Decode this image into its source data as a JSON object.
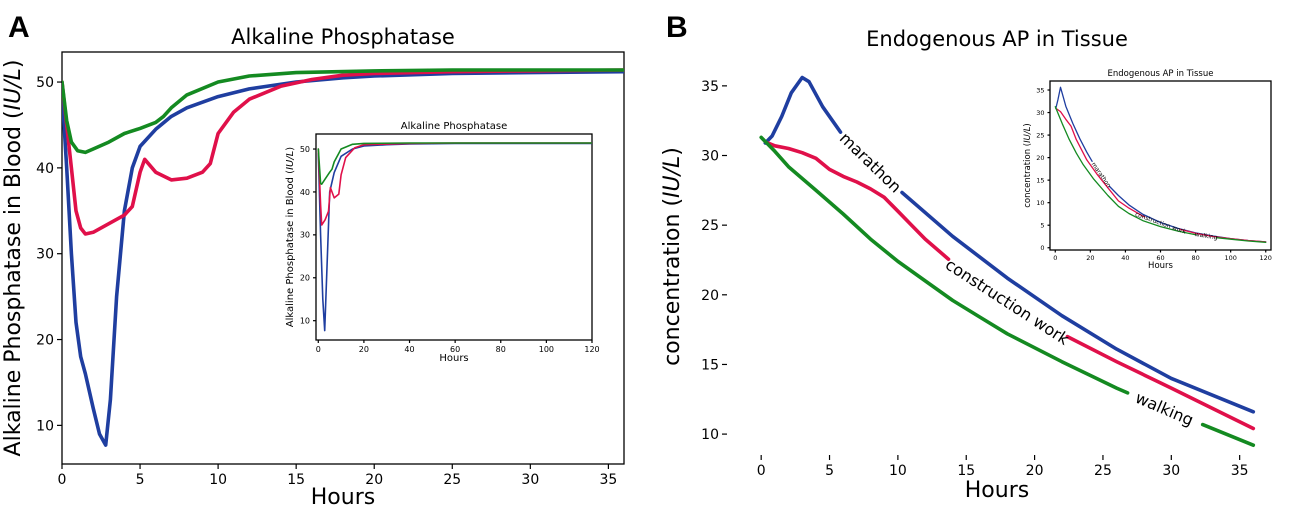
{
  "chart_data": [
    {
      "panel": "A",
      "type": "line",
      "title": "Alkaline Phosphatase",
      "xlabel": "Hours",
      "ylabel_prefix": "Alkaline Phosphatase in Blood (",
      "ylabel_unit": "IU/L",
      "ylabel_suffix": ")",
      "xlim": [
        0,
        36
      ],
      "ylim": [
        5.5,
        53.5
      ],
      "xticks": [
        0,
        5,
        10,
        15,
        20,
        25,
        30,
        35
      ],
      "yticks": [
        10,
        20,
        30,
        40,
        50
      ],
      "series": [
        {
          "color": "#1f3ea0",
          "x": [
            0,
            0.3,
            0.6,
            0.9,
            1.2,
            1.5,
            2,
            2.4,
            2.8,
            3.1,
            3.5,
            4,
            4.5,
            5,
            6,
            7,
            8,
            10,
            12,
            15,
            18,
            20,
            25,
            30,
            36
          ],
          "y": [
            49,
            40,
            30,
            22,
            18,
            16,
            12,
            9,
            7.7,
            13,
            25,
            35,
            40,
            42.5,
            44.5,
            46,
            47,
            48.3,
            49.2,
            50,
            50.5,
            50.7,
            51,
            51.1,
            51.2
          ]
        },
        {
          "color": "#e0104a",
          "x": [
            0,
            0.3,
            0.6,
            0.9,
            1.2,
            1.5,
            2,
            3,
            4,
            4.5,
            5,
            5.3,
            6,
            7,
            8,
            9,
            9.5,
            10,
            11,
            12,
            14,
            16,
            18,
            20,
            25,
            30,
            36
          ],
          "y": [
            50,
            45,
            40,
            35,
            33,
            32.3,
            32.5,
            33.5,
            34.5,
            35.5,
            39.5,
            41,
            39.5,
            38.6,
            38.8,
            39.5,
            40.5,
            44,
            46.5,
            48,
            49.5,
            50.3,
            50.8,
            51,
            51.2,
            51.3,
            51.4
          ]
        },
        {
          "color": "#148a21",
          "x": [
            0,
            0.3,
            0.6,
            1,
            1.5,
            2,
            3,
            4,
            5,
            6,
            6.5,
            7,
            8,
            10,
            12,
            15,
            20,
            25,
            30,
            36
          ],
          "y": [
            50,
            45.5,
            43,
            42,
            41.8,
            42.2,
            43,
            44,
            44.6,
            45.3,
            46,
            47,
            48.5,
            50,
            50.7,
            51.1,
            51.3,
            51.4,
            51.4,
            51.4
          ]
        }
      ]
    },
    {
      "panel": "A-inset",
      "type": "line",
      "title": "Alkaline Phosphatase",
      "xlabel": "Hours",
      "ylabel_prefix": "Alkaline Phosphatase in Blood (",
      "ylabel_unit": "IU/L",
      "ylabel_suffix": ")",
      "xlim": [
        -1,
        120
      ],
      "ylim": [
        5.5,
        53.5
      ],
      "xticks": [
        0,
        20,
        40,
        60,
        80,
        100,
        120
      ],
      "yticks": [
        10,
        20,
        30,
        40,
        50
      ],
      "series": [
        {
          "color": "#1f3ea0",
          "x": [
            0,
            1,
            2,
            2.8,
            3.5,
            5,
            7,
            10,
            15,
            20,
            30,
            40,
            60,
            80,
            120
          ],
          "y": [
            49,
            30,
            15,
            7.7,
            18,
            40,
            44.5,
            48.3,
            50,
            50.7,
            51,
            51.2,
            51.3,
            51.3,
            51.3
          ]
        },
        {
          "color": "#e0104a",
          "x": [
            0,
            1,
            1.5,
            3,
            4.5,
            5.3,
            7,
            9,
            10,
            12,
            16,
            20,
            40,
            60,
            120
          ],
          "y": [
            50,
            37,
            32.3,
            33.5,
            35.5,
            41,
            38.6,
            39.5,
            44,
            48,
            50.3,
            51,
            51.3,
            51.4,
            51.4
          ]
        },
        {
          "color": "#148a21",
          "x": [
            0,
            1,
            1.5,
            3,
            5,
            6,
            7,
            10,
            15,
            20,
            40,
            60,
            120
          ],
          "y": [
            50,
            42,
            41.8,
            43,
            44.6,
            45.3,
            47,
            50,
            51.1,
            51.3,
            51.4,
            51.4,
            51.4
          ]
        }
      ]
    },
    {
      "panel": "B",
      "type": "line",
      "title": "Endogenous AP in Tissue",
      "xlabel": "Hours",
      "ylabel_prefix": "concentration (",
      "ylabel_unit": "IU/L",
      "ylabel_suffix": ")",
      "xlim": [
        -2.5,
        37
      ],
      "ylim": [
        8.5,
        37
      ],
      "xticks": [
        0,
        5,
        10,
        15,
        20,
        25,
        30,
        35
      ],
      "yticks": [
        10,
        15,
        20,
        25,
        30,
        35
      ],
      "series": [
        {
          "color": "#1f3ea0",
          "label": "marathon",
          "label_at": 8,
          "label_gap": [
            5.8,
            10.3
          ],
          "x": [
            0.3,
            0.8,
            1.5,
            2.2,
            3,
            3.5,
            4.5,
            6,
            8,
            10,
            14,
            18,
            22,
            26,
            30,
            36
          ],
          "y": [
            30.9,
            31.4,
            32.8,
            34.5,
            35.6,
            35.3,
            33.5,
            31.4,
            29.5,
            27.6,
            24.2,
            21.2,
            18.5,
            16.1,
            14,
            11.6
          ]
        },
        {
          "color": "#e0104a",
          "label": "construction work",
          "label_at": 18,
          "label_gap": [
            13.7,
            22.4
          ],
          "x": [
            0.5,
            1,
            2,
            3,
            4,
            5,
            6,
            7,
            8,
            9,
            9.5,
            10,
            11,
            12,
            14,
            18,
            22,
            26,
            30,
            36
          ],
          "y": [
            30.9,
            30.7,
            30.5,
            30.2,
            29.8,
            29,
            28.5,
            28.1,
            27.6,
            27,
            26.5,
            26,
            25,
            24,
            22.3,
            19.5,
            17.2,
            15.2,
            13.3,
            10.4
          ]
        },
        {
          "color": "#148a21",
          "label": "walking",
          "label_at": 29.5,
          "label_gap": [
            26.8,
            32.3
          ],
          "x": [
            0,
            1,
            2,
            4,
            6,
            8,
            10,
            12,
            14,
            16,
            18,
            22,
            26,
            30,
            36
          ],
          "y": [
            31.3,
            30.3,
            29.2,
            27.5,
            25.8,
            24,
            22.4,
            21,
            19.6,
            18.4,
            17.2,
            15.2,
            13.3,
            11.6,
            9.2
          ]
        }
      ]
    },
    {
      "panel": "B-inset",
      "type": "line",
      "title": "Endogenous AP in Tissue",
      "xlabel": "Hours",
      "ylabel_prefix": "concentration (",
      "ylabel_unit": "IU/L",
      "ylabel_suffix": ")",
      "xlim": [
        -3,
        123
      ],
      "ylim": [
        -0.5,
        37
      ],
      "xticks": [
        0,
        20,
        40,
        60,
        80,
        100,
        120
      ],
      "yticks": [
        0,
        5,
        10,
        15,
        20,
        25,
        30,
        35
      ],
      "series": [
        {
          "color": "#1f3ea0",
          "label": "marathon",
          "label_at": 26,
          "label_gap": [
            21,
            31
          ],
          "x": [
            0.3,
            1.5,
            3,
            4.5,
            6,
            10,
            14,
            18,
            22,
            26,
            30,
            36,
            42,
            50,
            60,
            70,
            80,
            90,
            100,
            110,
            120
          ],
          "y": [
            30.9,
            32.8,
            35.6,
            33.5,
            31.4,
            27.6,
            24.2,
            21.2,
            18.5,
            16.1,
            14,
            11.6,
            9.5,
            7.4,
            5.6,
            4.3,
            3.3,
            2.6,
            2,
            1.6,
            1.3
          ]
        },
        {
          "color": "#e0104a",
          "label": "construction work",
          "label_at": 60,
          "label_gap": [
            51,
            71
          ],
          "x": [
            0.5,
            3,
            6,
            9,
            12,
            18,
            24,
            30,
            36,
            42,
            50,
            60,
            70,
            80,
            90,
            100,
            110,
            120
          ],
          "y": [
            30.9,
            30.2,
            28.5,
            27,
            24,
            19.5,
            16.2,
            13.3,
            10.4,
            8.8,
            7,
            5.4,
            4.2,
            3.2,
            2.5,
            2,
            1.6,
            1.3
          ]
        },
        {
          "color": "#148a21",
          "label": "walking",
          "label_at": 86,
          "label_gap": [
            80,
            92
          ],
          "x": [
            0,
            4,
            8,
            12,
            16,
            22,
            30,
            36,
            42,
            50,
            60,
            70,
            80,
            90,
            100,
            110,
            120
          ],
          "y": [
            31.3,
            27.5,
            24,
            21,
            18.4,
            15.2,
            11.6,
            9.2,
            7.6,
            6,
            4.7,
            3.7,
            2.9,
            2.3,
            1.9,
            1.5,
            1.2
          ]
        }
      ]
    }
  ],
  "panel_labels": {
    "a": "A",
    "b": "B"
  }
}
